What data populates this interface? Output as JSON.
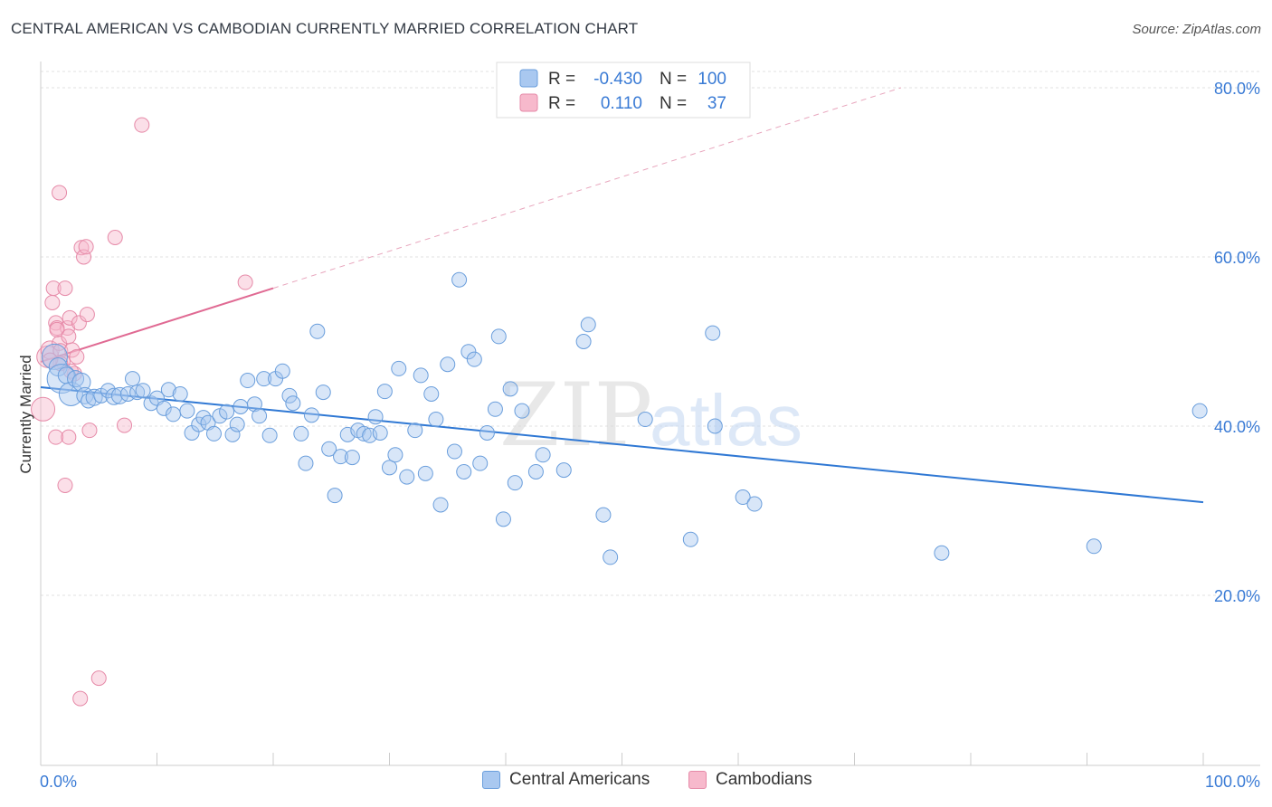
{
  "title": "CENTRAL AMERICAN VS CAMBODIAN CURRENTLY MARRIED CORRELATION CHART",
  "source": "Source: ZipAtlas.com",
  "watermark": {
    "zip": "ZIP",
    "atlas": "atlas"
  },
  "colors": {
    "blue_fill": "#a9c8f0",
    "blue_stroke": "#6a9edc",
    "blue_line": "#2f78d4",
    "pink_fill": "#f7b9cc",
    "pink_stroke": "#e68aa8",
    "pink_line": "#e06a93",
    "axis_text": "#3a7bd5",
    "grid": "#e2e2e2"
  },
  "legend": {
    "rows": [
      {
        "r_label": "R =",
        "r_value": "-0.430",
        "n_label": "N =",
        "n_value": "100"
      },
      {
        "r_label": "R =",
        "r_value": "0.110",
        "n_label": "N =",
        "n_value": "37"
      }
    ]
  },
  "bottom_legend": {
    "series1": "Central Americans",
    "series2": "Cambodians"
  },
  "chart_data": {
    "type": "scatter",
    "xlabel": "",
    "ylabel": "Currently Married",
    "xlim": [
      0,
      100
    ],
    "ylim": [
      0,
      83
    ],
    "x_tick_labels": [
      "0.0%",
      "100.0%"
    ],
    "y_ticks": [
      20,
      40,
      60,
      80
    ],
    "y_tick_labels": [
      "20.0%",
      "40.0%",
      "60.0%",
      "80.0%"
    ],
    "series": [
      {
        "name": "Central Americans",
        "color": "blue",
        "trend": {
          "x0": 0,
          "y0": 44.6,
          "x1": 100,
          "y1": 31.0
        },
        "points": [
          [
            1.2,
            48.2,
            14
          ],
          [
            1.5,
            47.0,
            10
          ],
          [
            1.8,
            45.6,
            16
          ],
          [
            2.2,
            46.0,
            9
          ],
          [
            2.6,
            43.8,
            13
          ],
          [
            3.0,
            45.6,
            9
          ],
          [
            3.5,
            45.2,
            10
          ],
          [
            3.8,
            43.6,
            9
          ],
          [
            4.1,
            43.0,
            8
          ],
          [
            4.6,
            43.4,
            9
          ],
          [
            5.2,
            43.6,
            8
          ],
          [
            5.8,
            44.2,
            8
          ],
          [
            6.3,
            43.5,
            9
          ],
          [
            6.8,
            43.6,
            9
          ],
          [
            7.5,
            43.8,
            8
          ],
          [
            7.9,
            45.6,
            8
          ],
          [
            8.3,
            44.0,
            8
          ],
          [
            8.8,
            44.2,
            8
          ],
          [
            9.5,
            42.7,
            8
          ],
          [
            10.0,
            43.3,
            8
          ],
          [
            10.6,
            42.1,
            8
          ],
          [
            11.0,
            44.3,
            8
          ],
          [
            11.4,
            41.4,
            8
          ],
          [
            12.0,
            43.8,
            8
          ],
          [
            12.6,
            41.8,
            8
          ],
          [
            13.0,
            39.2,
            8
          ],
          [
            13.6,
            40.2,
            8
          ],
          [
            14.0,
            41.0,
            8
          ],
          [
            14.4,
            40.4,
            8
          ],
          [
            14.9,
            39.1,
            8
          ],
          [
            15.4,
            41.2,
            8
          ],
          [
            16.0,
            41.7,
            8
          ],
          [
            16.5,
            39.0,
            8
          ],
          [
            16.9,
            40.2,
            8
          ],
          [
            17.2,
            42.3,
            8
          ],
          [
            17.8,
            45.4,
            8
          ],
          [
            18.4,
            42.6,
            8
          ],
          [
            18.8,
            41.2,
            8
          ],
          [
            19.2,
            45.6,
            8
          ],
          [
            19.7,
            38.9,
            8
          ],
          [
            20.2,
            45.6,
            8
          ],
          [
            20.8,
            46.5,
            8
          ],
          [
            21.4,
            43.6,
            8
          ],
          [
            21.7,
            42.7,
            8
          ],
          [
            22.4,
            39.1,
            8
          ],
          [
            22.8,
            35.6,
            8
          ],
          [
            23.3,
            41.3,
            8
          ],
          [
            23.8,
            51.2,
            8
          ],
          [
            24.3,
            44.0,
            8
          ],
          [
            24.8,
            37.3,
            8
          ],
          [
            25.3,
            31.8,
            8
          ],
          [
            25.8,
            36.4,
            8
          ],
          [
            26.4,
            39.0,
            8
          ],
          [
            26.8,
            36.3,
            8
          ],
          [
            27.3,
            39.5,
            8
          ],
          [
            27.8,
            39.1,
            8
          ],
          [
            28.3,
            38.9,
            8
          ],
          [
            28.8,
            41.1,
            8
          ],
          [
            29.2,
            39.2,
            8
          ],
          [
            29.6,
            44.1,
            8
          ],
          [
            30.0,
            35.1,
            8
          ],
          [
            30.5,
            36.6,
            8
          ],
          [
            30.8,
            46.8,
            8
          ],
          [
            31.5,
            34.0,
            8
          ],
          [
            32.2,
            39.5,
            8
          ],
          [
            32.7,
            46.0,
            8
          ],
          [
            33.1,
            34.4,
            8
          ],
          [
            33.6,
            43.8,
            8
          ],
          [
            34.0,
            40.8,
            8
          ],
          [
            34.4,
            30.7,
            8
          ],
          [
            35.0,
            47.3,
            8
          ],
          [
            35.6,
            37.0,
            8
          ],
          [
            36.0,
            57.3,
            8
          ],
          [
            36.4,
            34.6,
            8
          ],
          [
            36.8,
            48.8,
            8
          ],
          [
            37.3,
            47.9,
            8
          ],
          [
            37.8,
            35.6,
            8
          ],
          [
            38.4,
            39.2,
            8
          ],
          [
            39.1,
            42.0,
            8
          ],
          [
            39.4,
            50.6,
            8
          ],
          [
            39.8,
            29.0,
            8
          ],
          [
            40.4,
            44.4,
            8
          ],
          [
            40.8,
            33.3,
            8
          ],
          [
            41.4,
            41.8,
            8
          ],
          [
            42.6,
            34.6,
            8
          ],
          [
            43.2,
            36.6,
            8
          ],
          [
            45.0,
            34.8,
            8
          ],
          [
            46.7,
            50.0,
            8
          ],
          [
            47.1,
            52.0,
            8
          ],
          [
            48.4,
            29.5,
            8
          ],
          [
            49.0,
            24.5,
            8
          ],
          [
            52.0,
            40.8,
            8
          ],
          [
            55.9,
            26.6,
            8
          ],
          [
            57.8,
            51.0,
            8
          ],
          [
            58.0,
            40.0,
            8
          ],
          [
            60.4,
            31.6,
            8
          ],
          [
            61.4,
            30.8,
            8
          ],
          [
            77.5,
            25.0,
            8
          ],
          [
            90.6,
            25.8,
            8
          ],
          [
            99.7,
            41.8,
            8
          ]
        ]
      },
      {
        "name": "Cambodians",
        "color": "pink",
        "trend": {
          "x0": 0,
          "y0": 47.6,
          "x1": 20,
          "y1": 56.3,
          "dash_x1": 74,
          "dash_y1": 80.0
        },
        "points": [
          [
            0.2,
            42.0,
            13
          ],
          [
            0.6,
            48.2,
            12
          ],
          [
            0.8,
            49.0,
            10
          ],
          [
            1.0,
            54.6,
            8
          ],
          [
            1.1,
            56.3,
            8
          ],
          [
            1.3,
            52.2,
            8
          ],
          [
            1.4,
            51.6,
            8
          ],
          [
            1.6,
            49.8,
            8
          ],
          [
            1.7,
            48.9,
            8
          ],
          [
            1.9,
            47.6,
            8
          ],
          [
            2.1,
            56.3,
            8
          ],
          [
            2.3,
            51.6,
            8
          ],
          [
            2.5,
            52.8,
            8
          ],
          [
            2.7,
            49.0,
            8
          ],
          [
            2.9,
            46.2,
            8
          ],
          [
            3.1,
            48.2,
            8
          ],
          [
            3.3,
            52.2,
            8
          ],
          [
            3.5,
            61.1,
            8
          ],
          [
            3.7,
            60.0,
            8
          ],
          [
            3.9,
            61.2,
            8
          ],
          [
            4.0,
            53.2,
            8
          ],
          [
            4.2,
            39.5,
            8
          ],
          [
            1.3,
            38.7,
            8
          ],
          [
            2.1,
            33.0,
            8
          ],
          [
            2.4,
            38.7,
            8
          ],
          [
            1.6,
            67.6,
            8
          ],
          [
            6.4,
            62.3,
            8
          ],
          [
            7.2,
            40.1,
            8
          ],
          [
            8.7,
            75.6,
            8
          ],
          [
            17.6,
            57.0,
            8
          ],
          [
            1.4,
            51.4,
            8
          ],
          [
            1.7,
            47.4,
            8
          ],
          [
            2.4,
            50.6,
            8
          ],
          [
            0.8,
            47.8,
            8
          ],
          [
            3.4,
            7.8,
            8
          ],
          [
            5.0,
            10.2,
            8
          ],
          [
            2.6,
            46.5,
            8
          ]
        ]
      }
    ]
  }
}
